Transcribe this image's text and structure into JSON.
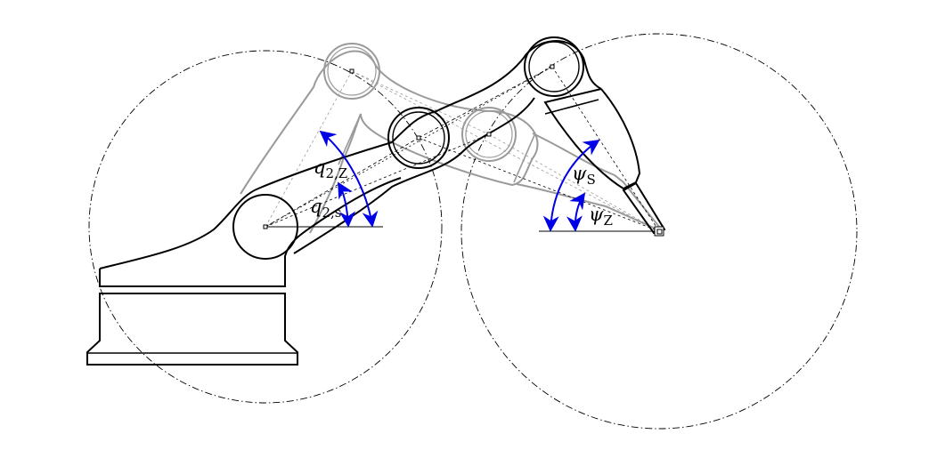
{
  "colors": {
    "ink": "#000000",
    "ghost": "#9a9a9a",
    "angle": "#0000e6"
  },
  "labels": {
    "q2Z": {
      "sym": "q",
      "sub": "2,Z"
    },
    "q2s": {
      "sym": "q",
      "sub": "2,s"
    },
    "psiS": {
      "sym": "ψ",
      "sub": "S"
    },
    "psiZ": {
      "sym": "ψ",
      "sub": "Z"
    }
  }
}
